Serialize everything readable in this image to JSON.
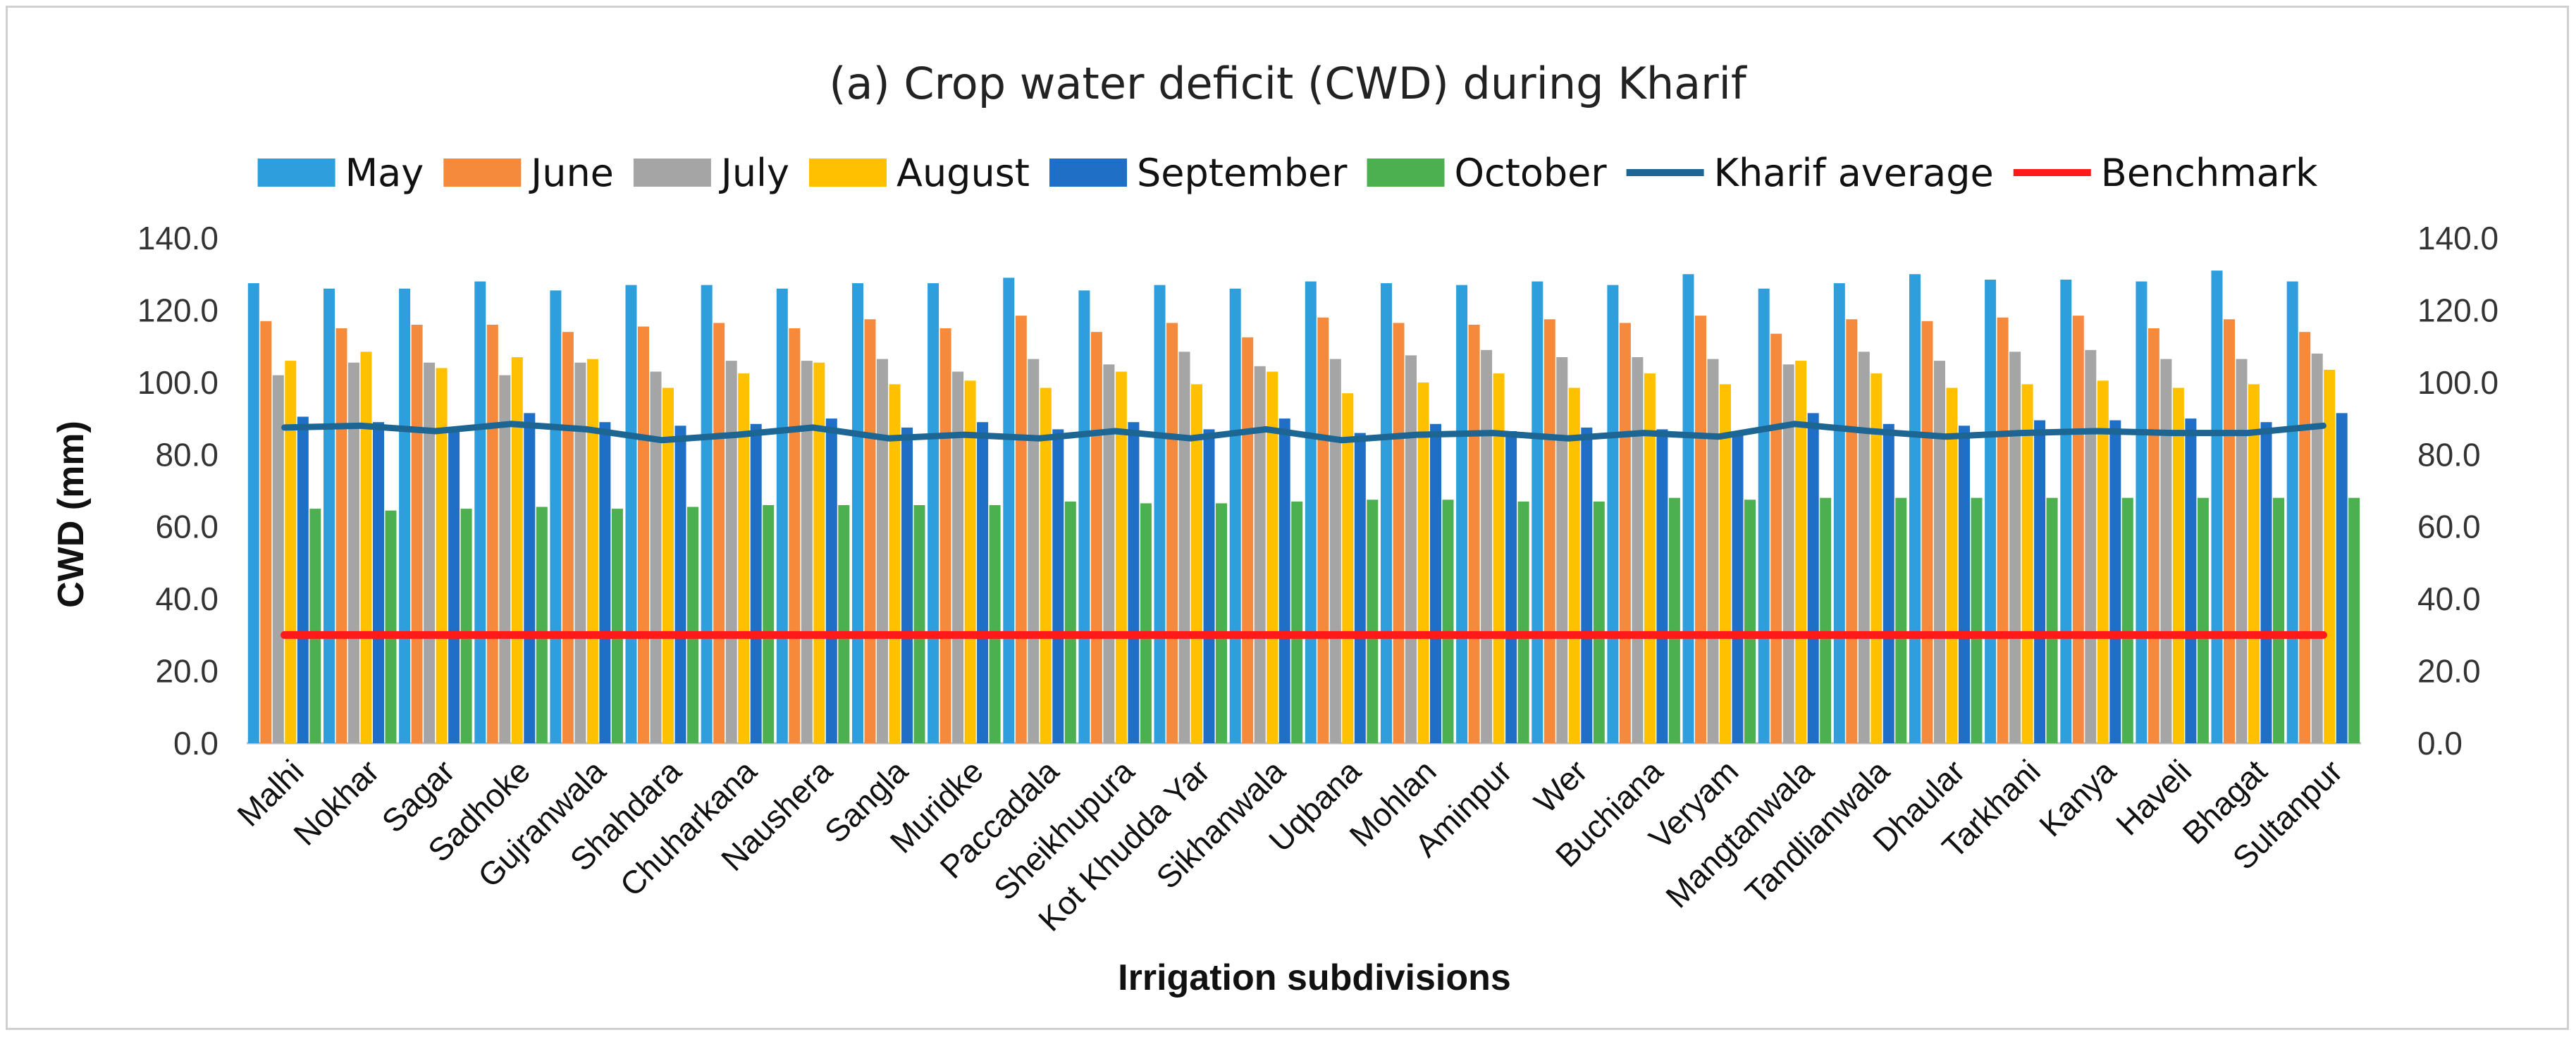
{
  "chart_data": {
    "type": "bar",
    "title": "(a) Crop water deficit (CWD) during Kharif",
    "xlabel": "Irrigation subdivisions",
    "ylabel": "CWD (mm)",
    "ylim": [
      0,
      140
    ],
    "yticks": [
      "0.0",
      "20.0",
      "40.0",
      "60.0",
      "80.0",
      "100.0",
      "120.0",
      "140.0"
    ],
    "grid": false,
    "legend_position": "top",
    "categories": [
      "Malhi",
      "Nokhar",
      "Sagar",
      "Sadhoke",
      "Gujranwala",
      "Shahdara",
      "Chuharkana",
      "Naushera",
      "Sangla",
      "Muridke",
      "Paccadala",
      "Sheikhupura",
      "Kot Khudda Yar",
      "Sikhanwala",
      "Uqbana",
      "Mohlan",
      "Aminpur",
      "Wer",
      "Buchiana",
      "Veryam",
      "Mangtanwala",
      "Tandlianwala",
      "Dhaular",
      "Tarkhani",
      "Kanya",
      "Haveli",
      "Bhagat",
      "Sultanpur"
    ],
    "series": [
      {
        "name": "May",
        "kind": "bar",
        "color": "#2e9fdc",
        "values": [
          127.5,
          126,
          126,
          128,
          125.5,
          127,
          127,
          126,
          127.5,
          127.5,
          129,
          125.5,
          127,
          126,
          128,
          127.5,
          127,
          128,
          127,
          130,
          126,
          127.5,
          130,
          128.5,
          128.5,
          128,
          131,
          128
        ]
      },
      {
        "name": "June",
        "kind": "bar",
        "color": "#f58a3c",
        "values": [
          117,
          115,
          116,
          116,
          114,
          115.5,
          116.5,
          115,
          117.5,
          115,
          118.5,
          114,
          116.5,
          112.5,
          118,
          116.5,
          116,
          117.5,
          116.5,
          118.5,
          113.5,
          117.5,
          117,
          118,
          118.5,
          115,
          117.5,
          114
        ]
      },
      {
        "name": "July",
        "kind": "bar",
        "color": "#a5a5a5",
        "values": [
          102,
          105.5,
          105.5,
          102,
          105.5,
          103,
          106,
          106,
          106.5,
          103,
          106.5,
          105,
          108.5,
          104.5,
          106.5,
          107.5,
          109,
          107,
          107,
          106.5,
          105,
          108.5,
          106,
          108.5,
          109,
          106.5,
          106.5,
          108
        ]
      },
      {
        "name": "August",
        "kind": "bar",
        "color": "#ffc000",
        "values": [
          106,
          108.5,
          104,
          107,
          106.5,
          98.5,
          102.5,
          105.5,
          99.5,
          100.5,
          98.5,
          103,
          99.5,
          103,
          97,
          100,
          102.5,
          98.5,
          102.5,
          99.5,
          106,
          102.5,
          98.5,
          99.5,
          100.5,
          98.5,
          99.5,
          103.5
        ]
      },
      {
        "name": "September",
        "kind": "bar",
        "color": "#1f6fc6",
        "values": [
          90.5,
          89,
          87.5,
          91.5,
          89,
          88,
          88.5,
          90,
          87.5,
          89,
          87,
          89,
          87,
          90,
          86,
          88.5,
          86.5,
          87.5,
          87,
          86.5,
          91.5,
          88.5,
          88,
          89.5,
          89.5,
          90,
          89,
          91.5
        ]
      },
      {
        "name": "October",
        "kind": "bar",
        "color": "#4caf50",
        "values": [
          65,
          64.5,
          65,
          65.5,
          65,
          65.5,
          66,
          66,
          66,
          66,
          67,
          66.5,
          66.5,
          67,
          67.5,
          67.5,
          67,
          67,
          68,
          67.5,
          68,
          68,
          68,
          68,
          68,
          68,
          68,
          68
        ]
      },
      {
        "name": "Kharif average",
        "kind": "line",
        "color": "#1d6592",
        "values": [
          87.5,
          88,
          86.5,
          88.5,
          87,
          84,
          85.5,
          87.5,
          84.5,
          85.5,
          84.5,
          86.5,
          84.5,
          87,
          84,
          85.5,
          86,
          84.5,
          86,
          85,
          88.5,
          86.5,
          85,
          86,
          86.5,
          86,
          86,
          88
        ]
      },
      {
        "name": "Benchmark",
        "kind": "line",
        "color": "#ff1a1a",
        "values": [
          30,
          30,
          30,
          30,
          30,
          30,
          30,
          30,
          30,
          30,
          30,
          30,
          30,
          30,
          30,
          30,
          30,
          30,
          30,
          30,
          30,
          30,
          30,
          30,
          30,
          30,
          30,
          30
        ]
      }
    ]
  }
}
